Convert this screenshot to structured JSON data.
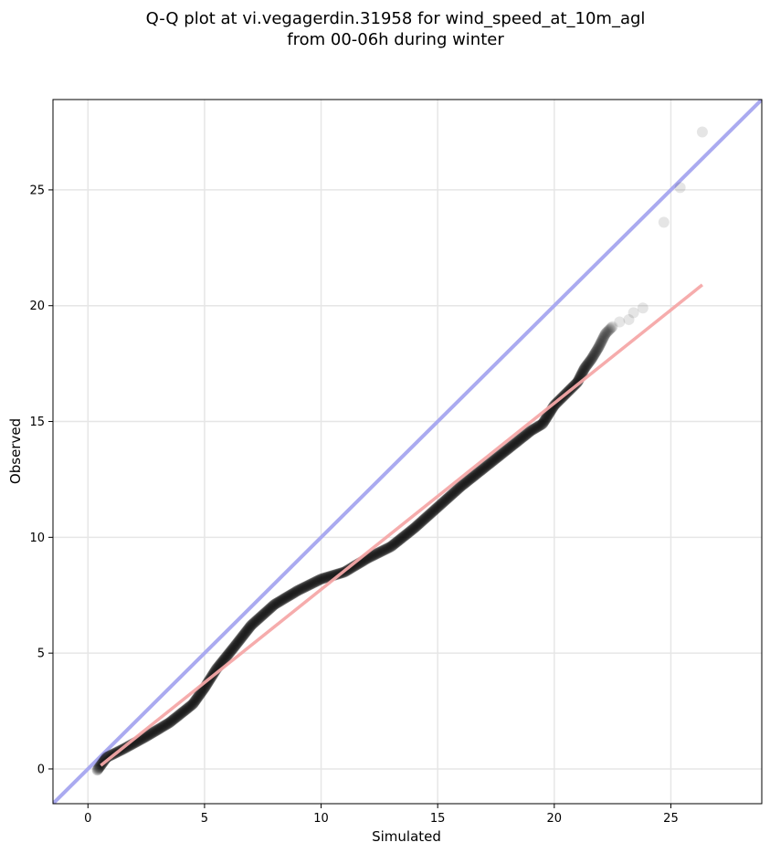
{
  "chart_data": {
    "type": "scatter",
    "title": [
      "Q-Q plot at vi.vegagerdin.31958 for wind_speed_at_10m_agl",
      "from 00-06h during winter"
    ],
    "xlabel": "Simulated",
    "ylabel": "Observed",
    "xlim": [
      -1.5,
      28.9
    ],
    "ylim": [
      -1.5,
      28.9
    ],
    "xticks": [
      0,
      5,
      10,
      15,
      20,
      25
    ],
    "yticks": [
      0,
      5,
      10,
      15,
      20,
      25
    ],
    "xtick_labels": [
      "0",
      "5",
      "10",
      "15",
      "20",
      "25"
    ],
    "ytick_labels": [
      "0",
      "5",
      "10",
      "15",
      "20",
      "25"
    ],
    "grid": true,
    "identity_line_color": "#aaaaf0",
    "fit_line_color": "#f6a8a8",
    "point_color": "#000000",
    "fit_line": {
      "x": [
        0.55,
        26.35
      ],
      "y": [
        0.15,
        20.9
      ]
    },
    "quantile_curve": [
      [
        0.4,
        -0.05
      ],
      [
        0.8,
        0.5
      ],
      [
        1.5,
        0.85
      ],
      [
        2.5,
        1.4
      ],
      [
        3.5,
        2.0
      ],
      [
        4.5,
        2.8
      ],
      [
        5.0,
        3.5
      ],
      [
        5.5,
        4.3
      ],
      [
        6.3,
        5.3
      ],
      [
        7.0,
        6.2
      ],
      [
        8.0,
        7.1
      ],
      [
        9.0,
        7.7
      ],
      [
        10.0,
        8.2
      ],
      [
        11.0,
        8.5
      ],
      [
        12.0,
        9.1
      ],
      [
        13.0,
        9.6
      ],
      [
        14.0,
        10.4
      ],
      [
        15.0,
        11.3
      ],
      [
        16.0,
        12.2
      ],
      [
        17.0,
        13.0
      ],
      [
        18.0,
        13.8
      ],
      [
        19.0,
        14.6
      ],
      [
        19.5,
        14.9
      ],
      [
        20.0,
        15.7
      ],
      [
        20.5,
        16.2
      ],
      [
        21.0,
        16.7
      ],
      [
        21.3,
        17.3
      ],
      [
        21.6,
        17.7
      ],
      [
        21.9,
        18.2
      ],
      [
        22.2,
        18.8
      ],
      [
        22.5,
        19.1
      ]
    ],
    "outliers": [
      [
        22.8,
        19.3
      ],
      [
        23.2,
        19.4
      ],
      [
        23.4,
        19.7
      ],
      [
        23.8,
        19.9
      ],
      [
        24.7,
        23.6
      ],
      [
        25.4,
        25.1
      ],
      [
        26.35,
        27.5
      ]
    ]
  }
}
